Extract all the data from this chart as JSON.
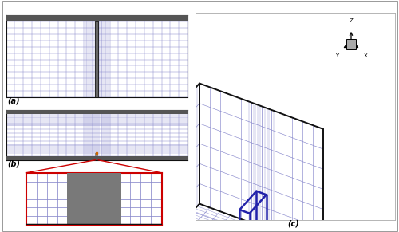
{
  "fig_width": 5.0,
  "fig_height": 2.91,
  "dpi": 100,
  "bg_color": "#ffffff",
  "grid_light": "#8888cc",
  "grid_dark": "#2222aa",
  "grid_black": "#111111",
  "red_color": "#cc0000",
  "gray_dark": "#555555",
  "gray_spur": "#777777",
  "label_a": "(a)",
  "label_b": "(b)",
  "label_c": "(c)"
}
